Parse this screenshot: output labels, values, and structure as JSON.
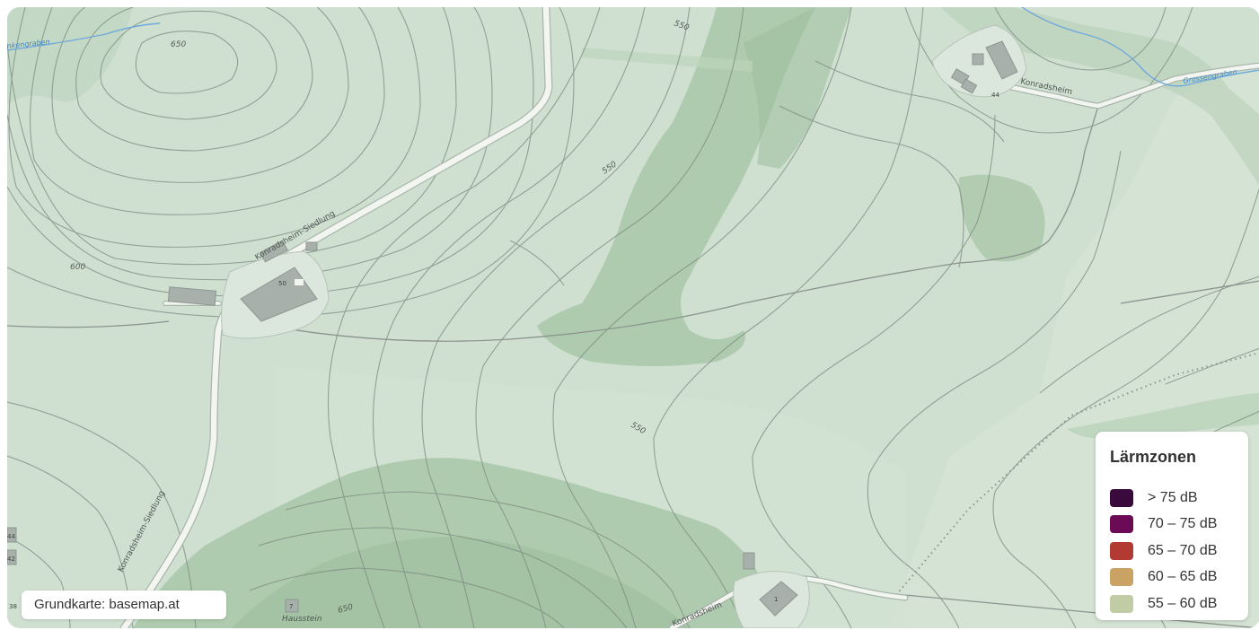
{
  "map": {
    "legend": {
      "title": "Lärmzonen",
      "items": [
        {
          "label": "> 75 dB",
          "color": "#3a0a3d"
        },
        {
          "label": "70 – 75 dB",
          "color": "#6b0a55"
        },
        {
          "label": "65 – 70 dB",
          "color": "#b33a33"
        },
        {
          "label": "60 – 65 dB",
          "color": "#c9a264"
        },
        {
          "label": "55 – 60 dB",
          "color": "#c1cca4"
        }
      ]
    },
    "attribution": "Grundkarte: basemap.at",
    "contour_labels": {
      "c650_top": "650",
      "c550_top": "550",
      "c550_mid": "550",
      "c600_left": "600",
      "c550_low": "550",
      "c650_bottom": "650"
    },
    "road_labels": {
      "siedlung_top": "Konradsheim-Siedlung",
      "siedlung_left": "Konradsheim-Siedlung",
      "konradsheim_top": "Konradsheim",
      "konradsheim_bottom": "Konradsheim"
    },
    "place_labels": {
      "haussstein": "Hausstein"
    },
    "water_labels": {
      "stream_left": "nkengraben",
      "stream_right": "Grossengraben"
    },
    "house_numbers": {
      "n50": "50",
      "n44": "44",
      "n7": "7",
      "n1": "1",
      "n44_edge": "44",
      "n42_edge": "42",
      "n38_edge": "38"
    }
  }
}
